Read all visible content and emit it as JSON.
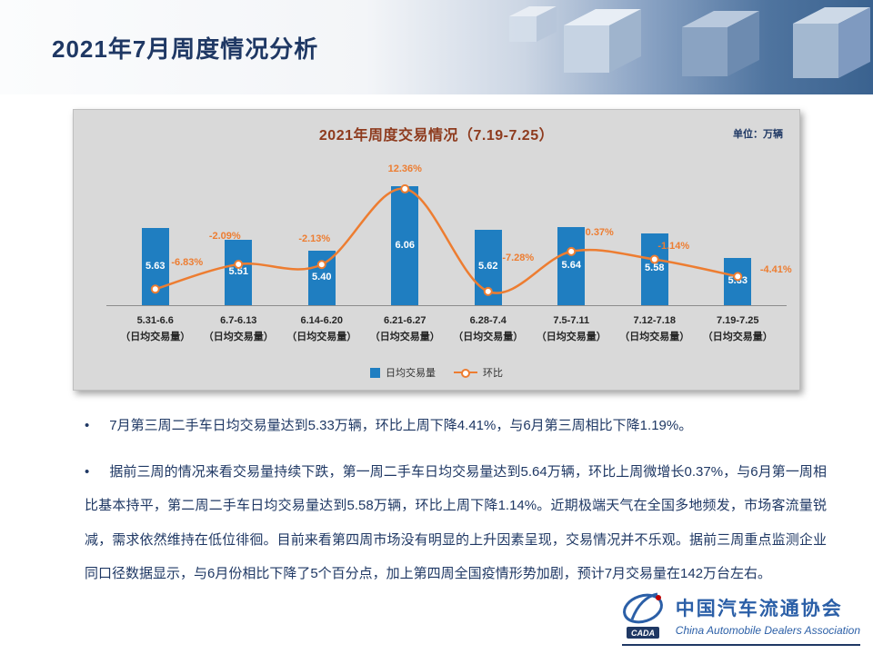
{
  "header": {
    "title": "2021年7月周度情况分析"
  },
  "chart_panel": {
    "title": "2021年周度交易情况（7.19-7.25）",
    "unit_label": "单位：万辆",
    "legend": [
      {
        "label": "日均交易量"
      },
      {
        "label": "环比"
      }
    ]
  },
  "chart_data": {
    "type": "bar",
    "title": "2021年周度交易情况（7.19-7.25）",
    "unit": "万辆",
    "categories": [
      "5.31-6.6",
      "6.7-6.13",
      "6.14-6.20",
      "6.21-6.27",
      "6.28-7.4",
      "7.5-7.11",
      "7.12-7.18",
      "7.19-7.25"
    ],
    "category_sublabel": "（日均交易量）",
    "series": [
      {
        "name": "日均交易量",
        "type": "bar",
        "values": [
          5.63,
          5.51,
          5.4,
          6.06,
          5.62,
          5.64,
          5.58,
          5.33
        ]
      },
      {
        "name": "环比",
        "type": "line",
        "unit": "%",
        "values": [
          -6.83,
          -2.09,
          -2.13,
          12.36,
          -7.28,
          0.37,
          -1.14,
          -4.41
        ]
      }
    ],
    "y_axis": {
      "visible": false,
      "approx_range": [
        4.84,
        6.7
      ]
    },
    "secondary_axis": {
      "visible": false,
      "unit": "%"
    },
    "grid": false,
    "legend_position": "bottom",
    "colors": {
      "bar": "#1F7EC1",
      "line": "#ED7D31",
      "value_label": "#FFFFFF",
      "pct_label": "#ED7D31"
    }
  },
  "body": {
    "bullet_char": "•",
    "bullets": [
      "7月第三周二手车日均交易量达到5.33万辆，环比上周下降4.41%，与6月第三周相比下降1.19%。",
      "据前三周的情况来看交易量持续下跌，第一周二手车日均交易量达到5.64万辆，环比上周微增长0.37%，与6月第一周相比基本持平，第二周二手车日均交易量达到5.58万辆，环比上周下降1.14%。近期极端天气在全国多地频发，市场客流量锐减，需求依然维持在低位徘徊。目前来看第四周市场没有明显的上升因素呈现，交易情况并不乐观。据前三周重点监测企业同口径数据显示，与6月份相比下降了5个百分点，加上第四周全国疫情形势加剧，预计7月交易量在142万台左右。"
    ]
  },
  "footer": {
    "logo_abbr": "CADA",
    "org_cn": "中国汽车流通协会",
    "org_en": "China Automobile Dealers Association"
  },
  "colors": {
    "header_title": "#1F3864",
    "chart_title": "#8E3B1E",
    "panel_bg": "#D9D9D9",
    "body_text": "#1F3864",
    "logo_blue": "#2B5FA7"
  }
}
